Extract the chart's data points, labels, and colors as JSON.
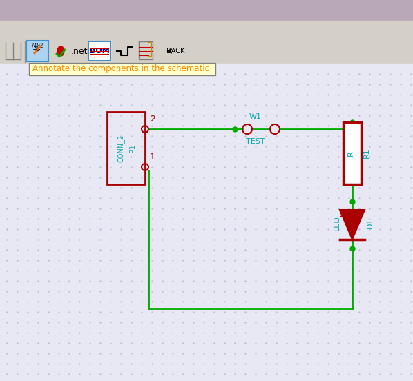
{
  "bg_top": "#c8b8c8",
  "bg_toolbar": "#d4d0c8",
  "bg_schematic": "#e8e8f0",
  "dot_color": "#b0b0c0",
  "wire_color": "#00aa00",
  "component_color": "#aa0000",
  "label_color": "#00aaaa",
  "tooltip_bg": "#ffffcc",
  "tooltip_text": "#ff8c00",
  "tooltip_border": "#808080",
  "tooltip_str": "Annotate the components in the schematic",
  "conn_label": "CONN_2",
  "conn_ref": "P1",
  "resistor_ref": "R1",
  "resistor_label": "R",
  "led_label": "LED",
  "led_ref": "D1",
  "test_label": "W1",
  "test_ref": "TEST"
}
